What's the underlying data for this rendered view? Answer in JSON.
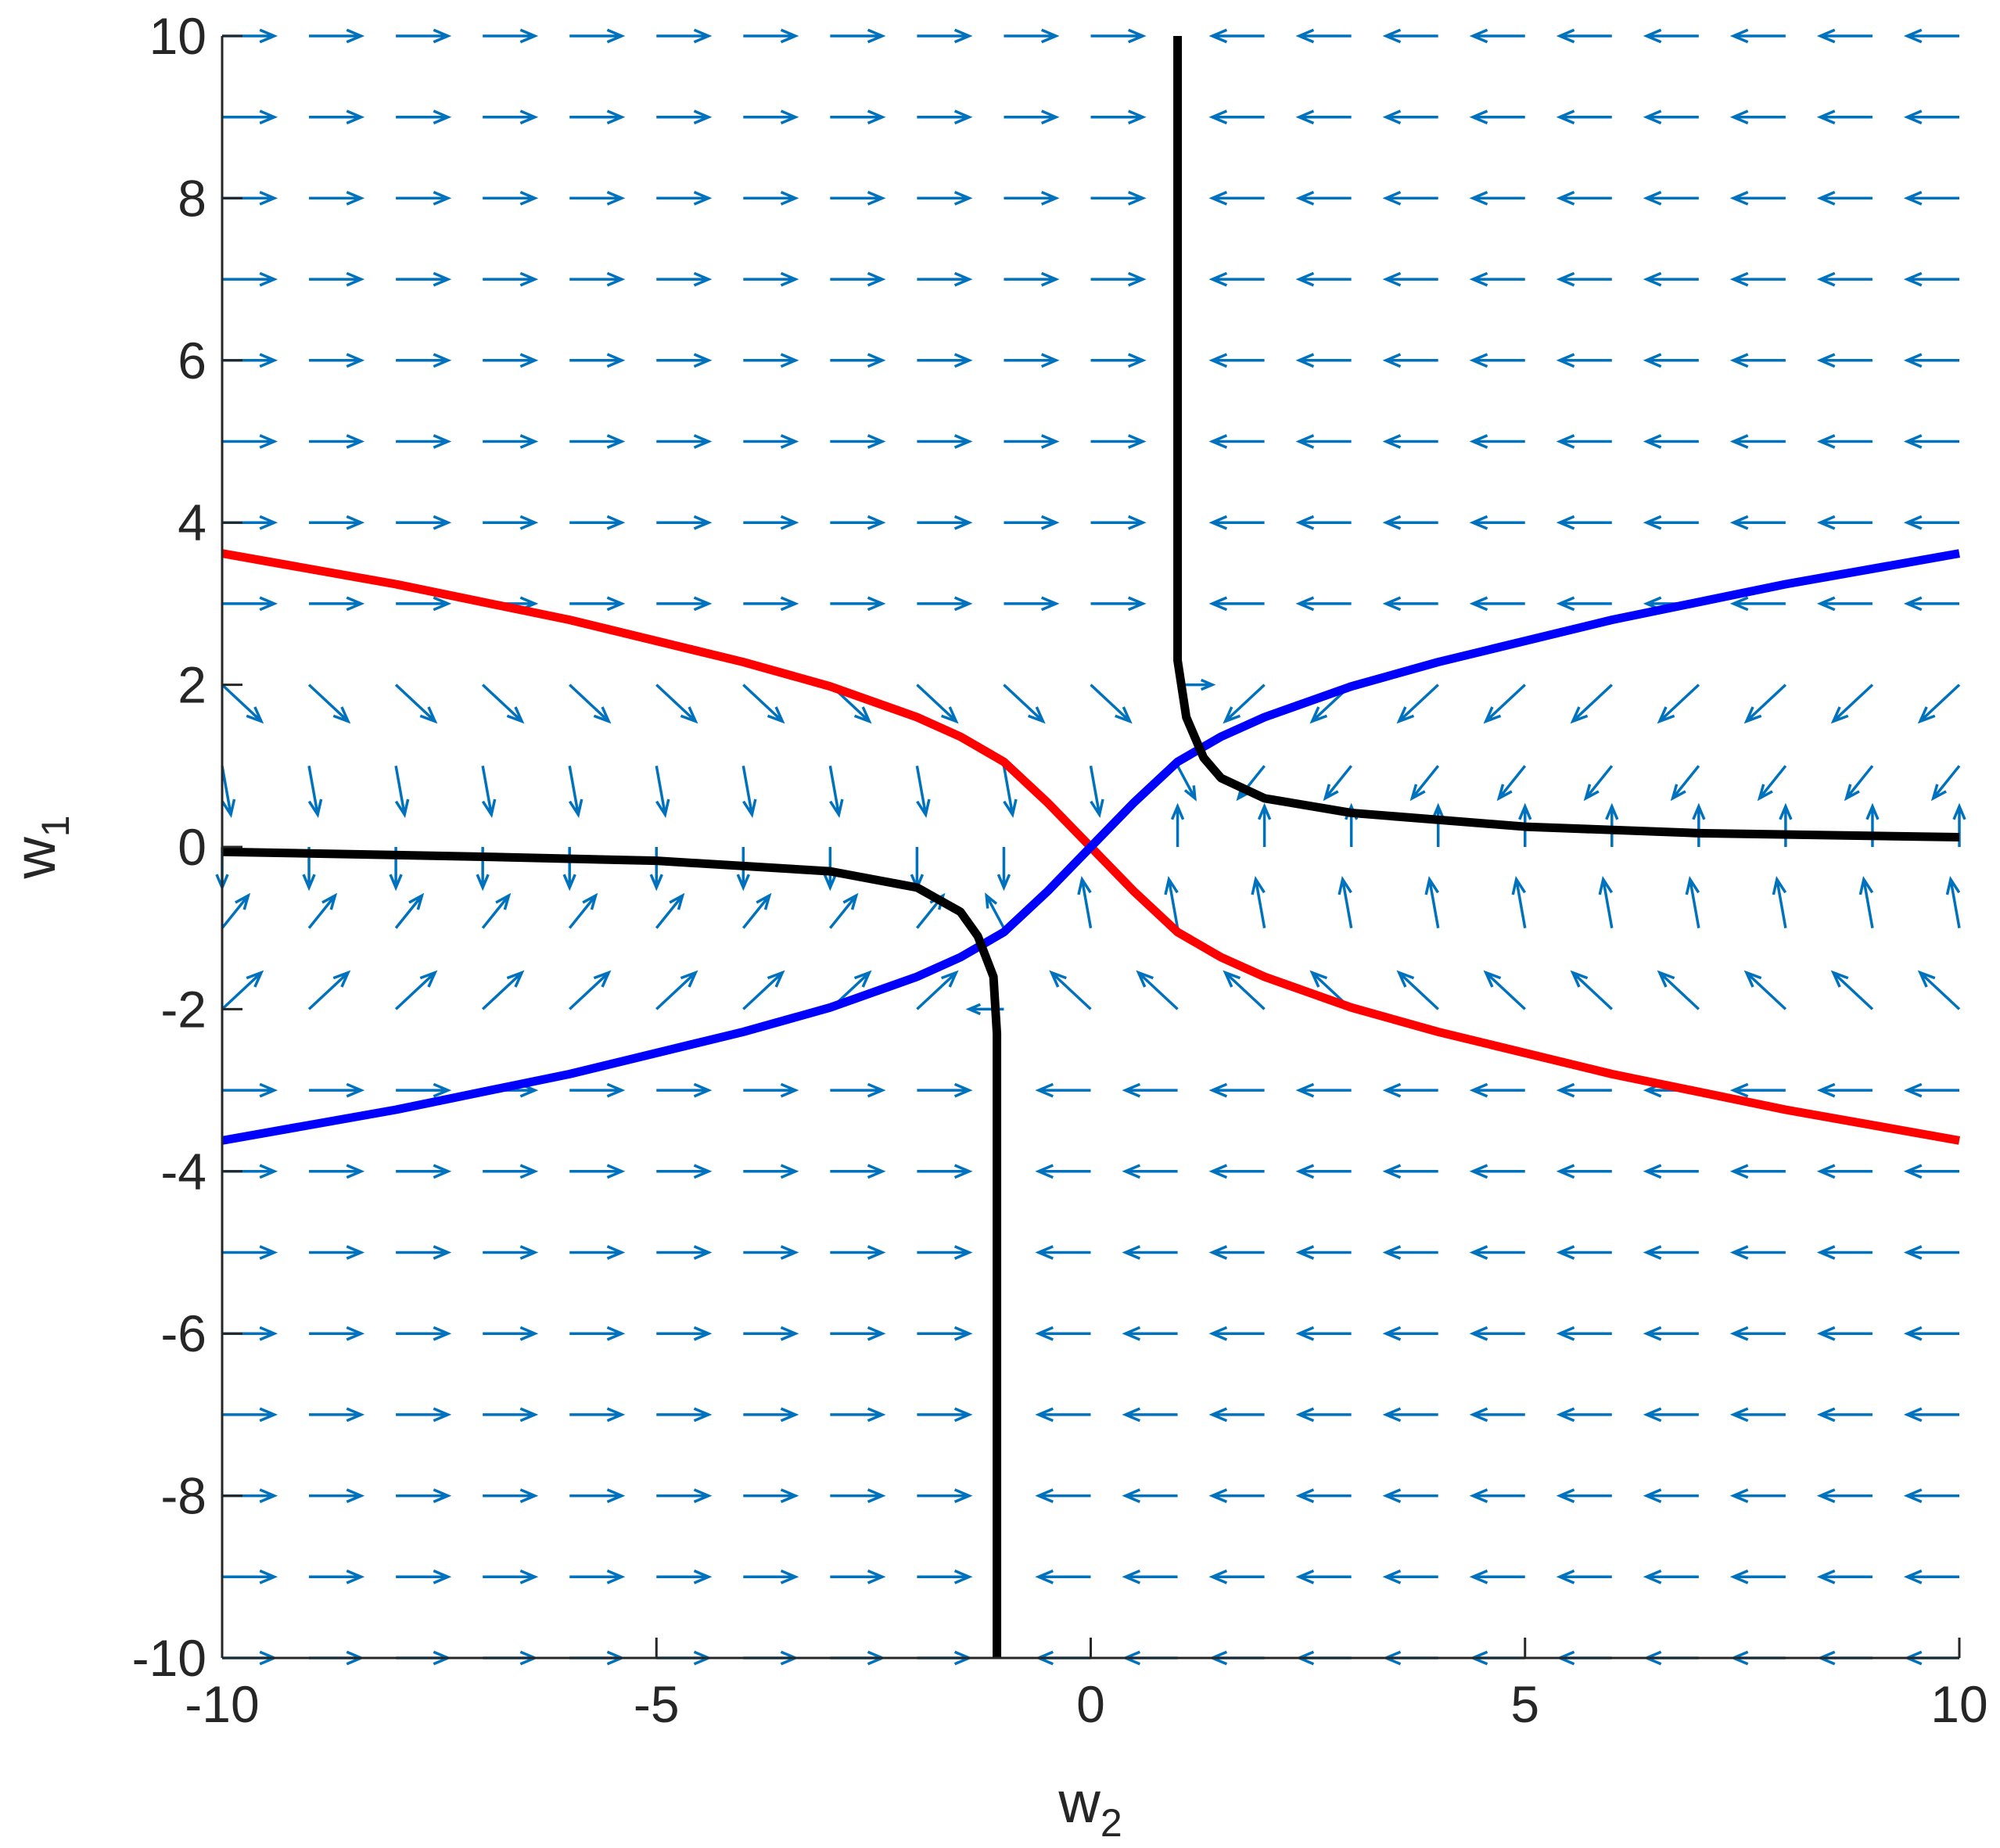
{
  "chart_data": {
    "type": "quiver",
    "xlabel": {
      "base": "w",
      "sub": "2"
    },
    "ylabel": {
      "base": "w",
      "sub": "1"
    },
    "xlim": [
      -10,
      10
    ],
    "ylim": [
      -10,
      10
    ],
    "xticks": [
      -10,
      -5,
      0,
      5,
      10
    ],
    "yticks": [
      -10,
      -8,
      -6,
      -4,
      -2,
      0,
      2,
      4,
      6,
      8,
      10
    ],
    "arrow_color": "#0072bd",
    "x": [
      -10,
      -9,
      -8,
      -7,
      -6,
      -5,
      -4,
      -3,
      -2,
      -1,
      0,
      1,
      2,
      3,
      4,
      5,
      6,
      7,
      8,
      9,
      10
    ],
    "y": [
      -10,
      -9,
      -8,
      -7,
      -6,
      -5,
      -4,
      -3,
      -2,
      -1,
      0,
      1,
      2,
      3,
      4,
      5,
      6,
      7,
      8,
      9,
      10
    ],
    "u": [
      [
        0.6,
        0.6,
        0.6,
        0.6,
        0.6,
        0.6,
        0.6,
        0.6,
        0.6,
        0,
        -0.6,
        -0.6,
        -0.6,
        -0.6,
        -0.6,
        -0.6,
        -0.6,
        -0.6,
        -0.6,
        -0.6,
        -0.6
      ],
      [
        0.6,
        0.6,
        0.6,
        0.6,
        0.6,
        0.6,
        0.6,
        0.6,
        0.6,
        0,
        -0.6,
        -0.6,
        -0.6,
        -0.6,
        -0.6,
        -0.6,
        -0.6,
        -0.6,
        -0.6,
        -0.6,
        -0.6
      ],
      [
        0.6,
        0.6,
        0.6,
        0.6,
        0.6,
        0.6,
        0.6,
        0.6,
        0.6,
        0,
        -0.6,
        -0.6,
        -0.6,
        -0.6,
        -0.6,
        -0.6,
        -0.6,
        -0.6,
        -0.6,
        -0.6,
        -0.6
      ],
      [
        0.6,
        0.6,
        0.6,
        0.6,
        0.6,
        0.6,
        0.6,
        0.6,
        0.6,
        0,
        -0.6,
        -0.6,
        -0.6,
        -0.6,
        -0.6,
        -0.6,
        -0.6,
        -0.6,
        -0.6,
        -0.6,
        -0.6
      ],
      [
        0.6,
        0.6,
        0.6,
        0.6,
        0.6,
        0.6,
        0.6,
        0.6,
        0.6,
        0,
        -0.6,
        -0.6,
        -0.6,
        -0.6,
        -0.6,
        -0.6,
        -0.6,
        -0.6,
        -0.6,
        -0.6,
        -0.6
      ],
      [
        0.6,
        0.6,
        0.6,
        0.6,
        0.6,
        0.6,
        0.6,
        0.6,
        0.6,
        0,
        -0.6,
        -0.6,
        -0.6,
        -0.6,
        -0.6,
        -0.6,
        -0.6,
        -0.6,
        -0.6,
        -0.6,
        -0.6
      ],
      [
        0.6,
        0.6,
        0.6,
        0.6,
        0.6,
        0.6,
        0.6,
        0.6,
        0.6,
        0,
        -0.6,
        -0.6,
        -0.6,
        -0.6,
        -0.6,
        -0.6,
        -0.6,
        -0.6,
        -0.6,
        -0.6,
        -0.6
      ],
      [
        0.6,
        0.6,
        0.6,
        0.6,
        0.6,
        0.6,
        0.6,
        0.6,
        0.6,
        0,
        -0.6,
        -0.6,
        -0.6,
        -0.6,
        -0.6,
        -0.6,
        -0.6,
        -0.6,
        -0.6,
        -0.6,
        -0.6
      ],
      [
        0.45,
        0.45,
        0.45,
        0.45,
        0.45,
        0.45,
        0.45,
        0.45,
        0.45,
        -0.4,
        -0.45,
        -0.45,
        -0.45,
        -0.45,
        -0.45,
        -0.45,
        -0.45,
        -0.45,
        -0.45,
        -0.45,
        -0.45
      ],
      [
        0.3,
        0.3,
        0.3,
        0.3,
        0.3,
        0.3,
        0.3,
        0.3,
        0.3,
        -0.2,
        -0.1,
        -0.1,
        -0.1,
        -0.1,
        -0.1,
        -0.1,
        -0.1,
        -0.1,
        -0.1,
        -0.1,
        -0.1
      ],
      [
        0,
        0,
        0,
        0,
        0,
        0,
        0,
        0,
        0,
        0,
        0,
        0,
        0,
        0,
        0,
        0,
        0,
        0,
        0,
        0,
        0
      ],
      [
        0.1,
        0.1,
        0.1,
        0.1,
        0.1,
        0.1,
        0.1,
        0.1,
        0.1,
        0.1,
        0.1,
        0.2,
        -0.3,
        -0.3,
        -0.3,
        -0.3,
        -0.3,
        -0.3,
        -0.3,
        -0.3,
        -0.3
      ],
      [
        0.45,
        0.45,
        0.45,
        0.45,
        0.45,
        0.45,
        0.45,
        0.45,
        0.45,
        0.45,
        0.45,
        0.4,
        -0.45,
        -0.45,
        -0.45,
        -0.45,
        -0.45,
        -0.45,
        -0.45,
        -0.45,
        -0.45
      ],
      [
        0.6,
        0.6,
        0.6,
        0.6,
        0.6,
        0.6,
        0.6,
        0.6,
        0.6,
        0.6,
        0.6,
        0,
        -0.6,
        -0.6,
        -0.6,
        -0.6,
        -0.6,
        -0.6,
        -0.6,
        -0.6,
        -0.6
      ],
      [
        0.6,
        0.6,
        0.6,
        0.6,
        0.6,
        0.6,
        0.6,
        0.6,
        0.6,
        0.6,
        0.6,
        0,
        -0.6,
        -0.6,
        -0.6,
        -0.6,
        -0.6,
        -0.6,
        -0.6,
        -0.6,
        -0.6
      ],
      [
        0.6,
        0.6,
        0.6,
        0.6,
        0.6,
        0.6,
        0.6,
        0.6,
        0.6,
        0.6,
        0.6,
        0,
        -0.6,
        -0.6,
        -0.6,
        -0.6,
        -0.6,
        -0.6,
        -0.6,
        -0.6,
        -0.6
      ],
      [
        0.6,
        0.6,
        0.6,
        0.6,
        0.6,
        0.6,
        0.6,
        0.6,
        0.6,
        0.6,
        0.6,
        0,
        -0.6,
        -0.6,
        -0.6,
        -0.6,
        -0.6,
        -0.6,
        -0.6,
        -0.6,
        -0.6
      ],
      [
        0.6,
        0.6,
        0.6,
        0.6,
        0.6,
        0.6,
        0.6,
        0.6,
        0.6,
        0.6,
        0.6,
        0,
        -0.6,
        -0.6,
        -0.6,
        -0.6,
        -0.6,
        -0.6,
        -0.6,
        -0.6,
        -0.6
      ],
      [
        0.6,
        0.6,
        0.6,
        0.6,
        0.6,
        0.6,
        0.6,
        0.6,
        0.6,
        0.6,
        0.6,
        0,
        -0.6,
        -0.6,
        -0.6,
        -0.6,
        -0.6,
        -0.6,
        -0.6,
        -0.6,
        -0.6
      ],
      [
        0.6,
        0.6,
        0.6,
        0.6,
        0.6,
        0.6,
        0.6,
        0.6,
        0.6,
        0.6,
        0.6,
        0,
        -0.6,
        -0.6,
        -0.6,
        -0.6,
        -0.6,
        -0.6,
        -0.6,
        -0.6,
        -0.6
      ],
      [
        0.6,
        0.6,
        0.6,
        0.6,
        0.6,
        0.6,
        0.6,
        0.6,
        0.6,
        0.6,
        0.6,
        0,
        -0.6,
        -0.6,
        -0.6,
        -0.6,
        -0.6,
        -0.6,
        -0.6,
        -0.6,
        -0.6
      ]
    ],
    "v": [
      [
        0,
        0,
        0,
        0,
        0,
        0,
        0,
        0,
        0,
        0,
        0,
        0,
        0,
        0,
        0,
        0,
        0,
        0,
        0,
        0,
        0
      ],
      [
        0,
        0,
        0,
        0,
        0,
        0,
        0,
        0,
        0,
        0,
        0,
        0,
        0,
        0,
        0,
        0,
        0,
        0,
        0,
        0,
        0
      ],
      [
        0,
        0,
        0,
        0,
        0,
        0,
        0,
        0,
        0,
        0,
        0,
        0,
        0,
        0,
        0,
        0,
        0,
        0,
        0,
        0,
        0
      ],
      [
        0,
        0,
        0,
        0,
        0,
        0,
        0,
        0,
        0,
        0,
        0,
        0,
        0,
        0,
        0,
        0,
        0,
        0,
        0,
        0,
        0
      ],
      [
        0,
        0,
        0,
        0,
        0,
        0,
        0,
        0,
        0,
        0,
        0,
        0,
        0,
        0,
        0,
        0,
        0,
        0,
        0,
        0,
        0
      ],
      [
        0,
        0,
        0,
        0,
        0,
        0,
        0,
        0,
        0,
        0,
        0,
        0,
        0,
        0,
        0,
        0,
        0,
        0,
        0,
        0,
        0
      ],
      [
        0,
        0,
        0,
        0,
        0,
        0,
        0,
        0,
        0,
        0,
        0,
        0,
        0,
        0,
        0,
        0,
        0,
        0,
        0,
        0,
        0
      ],
      [
        0,
        0,
        0,
        0,
        0,
        0,
        0,
        0,
        0,
        0,
        0,
        0,
        0,
        0,
        0,
        0,
        0,
        0,
        0,
        0,
        0
      ],
      [
        0.45,
        0.45,
        0.45,
        0.45,
        0.45,
        0.45,
        0.45,
        0.45,
        0.45,
        0,
        0.45,
        0.45,
        0.45,
        0.45,
        0.45,
        0.45,
        0.45,
        0.45,
        0.45,
        0.45,
        0.45
      ],
      [
        0.4,
        0.4,
        0.4,
        0.4,
        0.4,
        0.4,
        0.4,
        0.4,
        0.4,
        0.4,
        0.6,
        0.6,
        0.6,
        0.6,
        0.6,
        0.6,
        0.6,
        0.6,
        0.6,
        0.6,
        0.6
      ],
      [
        -0.5,
        -0.5,
        -0.5,
        -0.5,
        -0.5,
        -0.5,
        -0.5,
        -0.5,
        -0.5,
        -0.5,
        0,
        0.5,
        0.5,
        0.5,
        0.5,
        0.5,
        0.5,
        0.5,
        0.5,
        0.5,
        0.5
      ],
      [
        -0.6,
        -0.6,
        -0.6,
        -0.6,
        -0.6,
        -0.6,
        -0.6,
        -0.6,
        -0.6,
        -0.6,
        -0.6,
        -0.4,
        -0.4,
        -0.4,
        -0.4,
        -0.4,
        -0.4,
        -0.4,
        -0.4,
        -0.4,
        -0.4
      ],
      [
        -0.45,
        -0.45,
        -0.45,
        -0.45,
        -0.45,
        -0.45,
        -0.45,
        -0.45,
        -0.45,
        -0.45,
        -0.45,
        0,
        -0.45,
        -0.45,
        -0.45,
        -0.45,
        -0.45,
        -0.45,
        -0.45,
        -0.45,
        -0.45
      ],
      [
        0,
        0,
        0,
        0,
        0,
        0,
        0,
        0,
        0,
        0,
        0,
        0,
        0,
        0,
        0,
        0,
        0,
        0,
        0,
        0,
        0
      ],
      [
        0,
        0,
        0,
        0,
        0,
        0,
        0,
        0,
        0,
        0,
        0,
        0,
        0,
        0,
        0,
        0,
        0,
        0,
        0,
        0,
        0
      ],
      [
        0,
        0,
        0,
        0,
        0,
        0,
        0,
        0,
        0,
        0,
        0,
        0,
        0,
        0,
        0,
        0,
        0,
        0,
        0,
        0,
        0
      ],
      [
        0,
        0,
        0,
        0,
        0,
        0,
        0,
        0,
        0,
        0,
        0,
        0,
        0,
        0,
        0,
        0,
        0,
        0,
        0,
        0,
        0
      ],
      [
        0,
        0,
        0,
        0,
        0,
        0,
        0,
        0,
        0,
        0,
        0,
        0,
        0,
        0,
        0,
        0,
        0,
        0,
        0,
        0,
        0
      ],
      [
        0,
        0,
        0,
        0,
        0,
        0,
        0,
        0,
        0,
        0,
        0,
        0,
        0,
        0,
        0,
        0,
        0,
        0,
        0,
        0,
        0
      ],
      [
        0,
        0,
        0,
        0,
        0,
        0,
        0,
        0,
        0,
        0,
        0,
        0,
        0,
        0,
        0,
        0,
        0,
        0,
        0,
        0,
        0
      ],
      [
        0,
        0,
        0,
        0,
        0,
        0,
        0,
        0,
        0,
        0,
        0,
        0,
        0,
        0,
        0,
        0,
        0,
        0,
        0,
        0,
        0
      ]
    ],
    "series": [
      {
        "color": "#ff0000",
        "x": [
          -10,
          -8,
          -6,
          -4,
          -3,
          -2,
          -1.5,
          -1,
          -0.5,
          0,
          0.5,
          1,
          1.5,
          2,
          3,
          4,
          6,
          8,
          10
        ],
        "y": [
          3.62,
          3.24,
          2.8,
          2.28,
          1.98,
          1.6,
          1.36,
          1.05,
          0.55,
          0,
          -0.55,
          -1.05,
          -1.36,
          -1.6,
          -1.98,
          -2.28,
          -2.8,
          -3.24,
          -3.62
        ]
      },
      {
        "color": "#0000ff",
        "x": [
          -10,
          -8,
          -6,
          -4,
          -3,
          -2,
          -1.5,
          -1,
          -0.5,
          0,
          0.5,
          1,
          1.5,
          2,
          3,
          4,
          6,
          8,
          10
        ],
        "y": [
          -3.62,
          -3.24,
          -2.8,
          -2.28,
          -1.98,
          -1.6,
          -1.36,
          -1.05,
          -0.55,
          0,
          0.55,
          1.05,
          1.36,
          1.6,
          1.98,
          2.28,
          2.8,
          3.24,
          3.62
        ]
      },
      {
        "color": "#000000",
        "x": [
          1,
          1,
          1.1,
          1.3,
          1.5,
          2,
          3,
          5,
          7,
          10
        ],
        "y": [
          10,
          2.3,
          1.6,
          1.1,
          0.85,
          0.6,
          0.42,
          0.25,
          0.17,
          0.12
        ]
      },
      {
        "color": "#000000",
        "x": [
          -10,
          -7,
          -5,
          -3,
          -2,
          -1.5,
          -1.3,
          -1.12,
          -1.08,
          -1.08
        ],
        "y": [
          -0.06,
          -0.12,
          -0.17,
          -0.3,
          -0.5,
          -0.8,
          -1.1,
          -1.6,
          -2.3,
          -10
        ]
      }
    ]
  }
}
